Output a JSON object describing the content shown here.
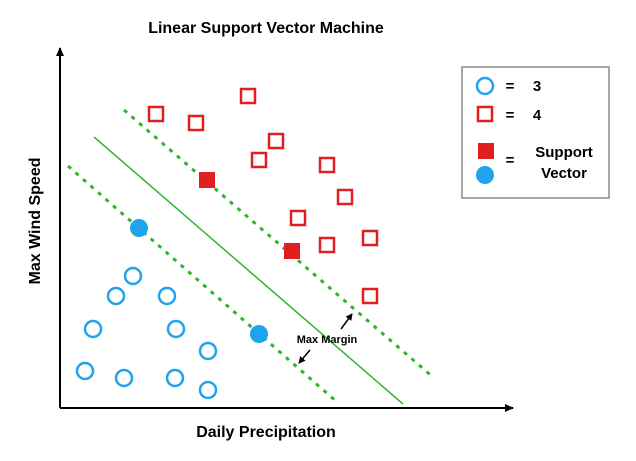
{
  "title": "Linear Support Vector Machine",
  "x_axis_label": "Daily Precipitation",
  "y_axis_label": "Max Wind Speed",
  "annotation": "Max Margin",
  "legend": {
    "entries": [
      {
        "symbol": "open-circle",
        "equals": "=",
        "label": "3"
      },
      {
        "symbol": "open-square",
        "equals": "=",
        "label": "4"
      },
      {
        "symbol": "filled-square-and-circle",
        "equals": "=",
        "label_line1": "Support",
        "label_line2": "Vector"
      }
    ]
  },
  "colors": {
    "class_3": "#1fa3ec",
    "class_4": "#e02020",
    "hyperplane": "#2fb52f",
    "axis": "#000000"
  },
  "class_3_points": [
    [
      133,
      276
    ],
    [
      116,
      296
    ],
    [
      167,
      296
    ],
    [
      93,
      329
    ],
    [
      176,
      329
    ],
    [
      208,
      351
    ],
    [
      85,
      371
    ],
    [
      124,
      378
    ],
    [
      175,
      378
    ],
    [
      208,
      390
    ]
  ],
  "class_4_points": [
    [
      156,
      114
    ],
    [
      196,
      123
    ],
    [
      248,
      96
    ],
    [
      276,
      141
    ],
    [
      259,
      160
    ],
    [
      327,
      165
    ],
    [
      345,
      197
    ],
    [
      298,
      218
    ],
    [
      327,
      245
    ],
    [
      370,
      238
    ],
    [
      370,
      296
    ]
  ],
  "support_vectors_class_3": [
    [
      139,
      228
    ],
    [
      259,
      334
    ]
  ],
  "support_vectors_class_4": [
    [
      207,
      180
    ],
    [
      292,
      251
    ]
  ]
}
